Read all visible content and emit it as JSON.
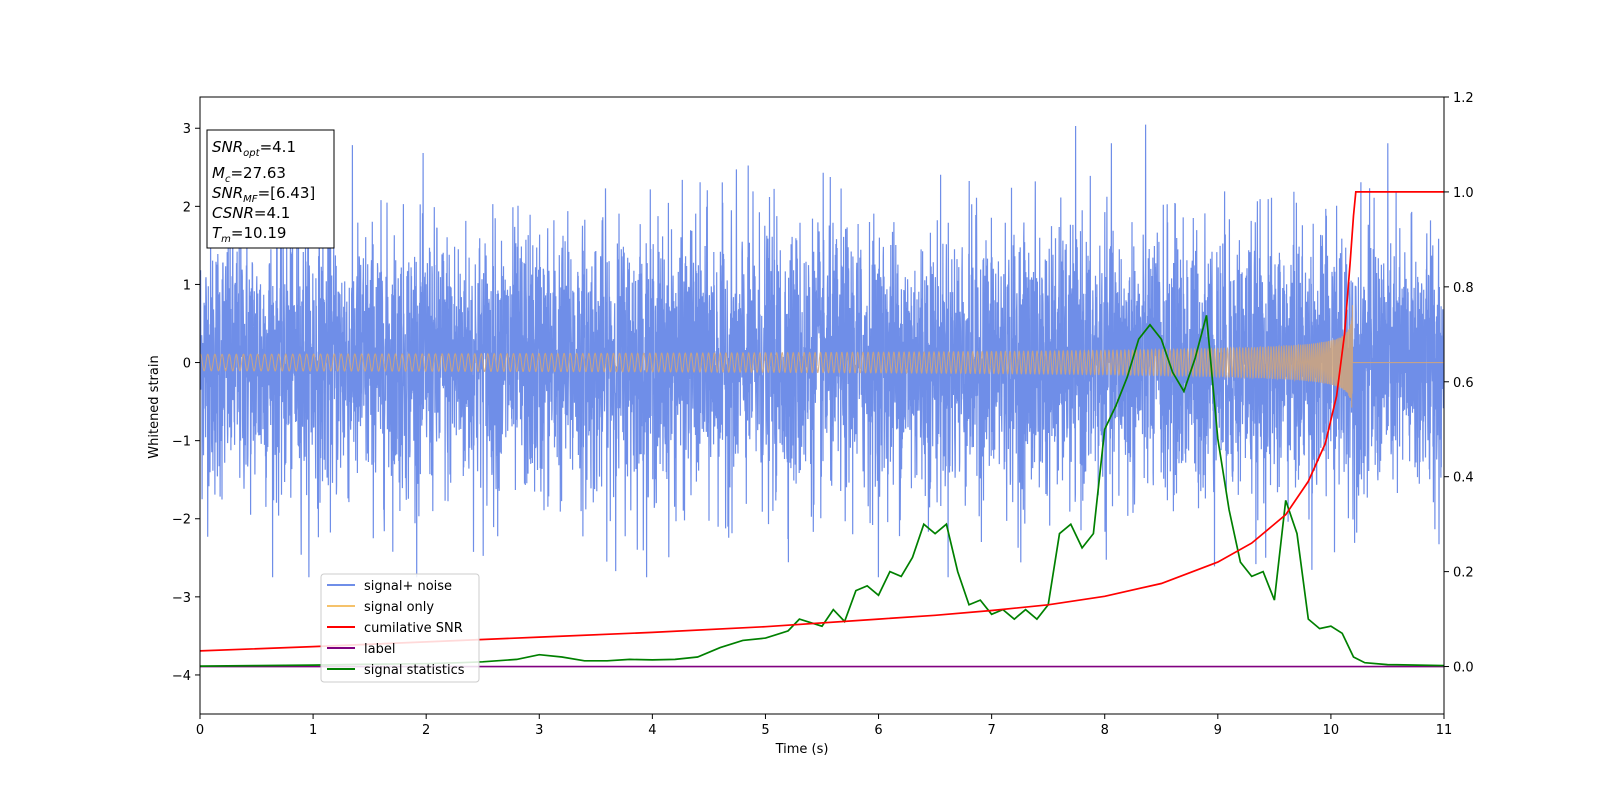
{
  "chart_data": {
    "type": "line",
    "title": "",
    "xlabel": "Time (s)",
    "ylabel": "Whitened strain",
    "y2label": "",
    "xlim": [
      0,
      11
    ],
    "ylim": [
      -4.5,
      3.4
    ],
    "y2lim": [
      -0.1,
      1.2
    ],
    "x_ticks": [
      "0",
      "1",
      "2",
      "3",
      "4",
      "5",
      "6",
      "7",
      "8",
      "9",
      "10",
      "11"
    ],
    "y_ticks": [
      "3",
      "2",
      "1",
      "0",
      "−1",
      "−2",
      "−3",
      "−4"
    ],
    "y_tick_values": [
      3,
      2,
      1,
      0,
      -1,
      -2,
      -3,
      -4
    ],
    "y2_ticks": [
      "1.2",
      "1.0",
      "0.8",
      "0.6",
      "0.4",
      "0.2",
      "0.0"
    ],
    "y2_tick_values": [
      1.2,
      1.0,
      0.8,
      0.6,
      0.4,
      0.2,
      0.0
    ],
    "grid": false,
    "legend_position": "lower-left",
    "colors": {
      "signal_noise": "#6f8ee8",
      "signal_only": "#f5c26b",
      "signal_only_dark": "#d2a679",
      "cumulative_snr": "#ff0000",
      "label": "#800080",
      "signal_statistics": "#008000"
    },
    "series": [
      {
        "name": "signal+ noise",
        "axis": "left",
        "kind": "noise",
        "description_values": {
          "mean": 0.0,
          "typical_amplitude": 1.6,
          "max_peak": 3.07,
          "min_peak": -2.75
        }
      },
      {
        "name": "signal only",
        "axis": "left",
        "kind": "chirp",
        "merger_time": 10.19,
        "peak_amplitude": 0.75
      },
      {
        "name": "cumilative SNR",
        "axis": "right",
        "x": [
          0,
          1,
          2,
          3,
          4,
          5,
          6,
          6.5,
          7,
          7.5,
          8,
          8.5,
          9,
          9.3,
          9.6,
          9.8,
          9.95,
          10.05,
          10.12,
          10.17,
          10.2,
          10.22,
          10.5,
          11
        ],
        "y": [
          0.033,
          0.042,
          0.052,
          0.062,
          0.072,
          0.084,
          0.1,
          0.108,
          0.118,
          0.13,
          0.148,
          0.175,
          0.22,
          0.26,
          0.32,
          0.39,
          0.47,
          0.57,
          0.7,
          0.85,
          0.95,
          1.0,
          1.0,
          1.0
        ]
      },
      {
        "name": "label",
        "axis": "right",
        "x": [
          0,
          11
        ],
        "y": [
          0.0,
          0.0
        ]
      },
      {
        "name": "signal statistics",
        "axis": "right",
        "x": [
          0,
          0.5,
          1,
          1.5,
          2,
          2.3,
          2.5,
          2.8,
          3.0,
          3.2,
          3.4,
          3.6,
          3.8,
          4.0,
          4.2,
          4.4,
          4.6,
          4.8,
          5.0,
          5.2,
          5.3,
          5.5,
          5.6,
          5.7,
          5.8,
          5.9,
          6.0,
          6.1,
          6.2,
          6.3,
          6.4,
          6.5,
          6.6,
          6.7,
          6.8,
          6.9,
          7.0,
          7.1,
          7.2,
          7.3,
          7.4,
          7.5,
          7.6,
          7.7,
          7.8,
          7.9,
          8.0,
          8.1,
          8.2,
          8.3,
          8.4,
          8.5,
          8.6,
          8.7,
          8.8,
          8.9,
          9.0,
          9.1,
          9.2,
          9.3,
          9.4,
          9.5,
          9.6,
          9.7,
          9.8,
          9.9,
          10.0,
          10.1,
          10.2,
          10.3,
          10.5,
          11
        ],
        "y": [
          0.001,
          0.002,
          0.003,
          0.005,
          0.006,
          0.008,
          0.01,
          0.015,
          0.025,
          0.02,
          0.012,
          0.012,
          0.015,
          0.014,
          0.015,
          0.02,
          0.04,
          0.055,
          0.06,
          0.075,
          0.1,
          0.085,
          0.12,
          0.095,
          0.16,
          0.17,
          0.15,
          0.2,
          0.19,
          0.23,
          0.3,
          0.28,
          0.3,
          0.2,
          0.13,
          0.14,
          0.11,
          0.12,
          0.1,
          0.12,
          0.1,
          0.13,
          0.28,
          0.3,
          0.25,
          0.28,
          0.5,
          0.55,
          0.61,
          0.69,
          0.72,
          0.69,
          0.62,
          0.58,
          0.65,
          0.74,
          0.48,
          0.33,
          0.22,
          0.19,
          0.2,
          0.14,
          0.35,
          0.28,
          0.1,
          0.08,
          0.085,
          0.07,
          0.02,
          0.008,
          0.004,
          0.002
        ]
      }
    ],
    "annotation": [
      {
        "base": "SNR",
        "sub": "opt",
        "rest": "=4.1"
      },
      {
        "base": "M",
        "sub": "c",
        "rest": "=27.63"
      },
      {
        "base": "SNR",
        "sub": "MF",
        "rest": "=[6.43]"
      },
      {
        "base": "CSNR",
        "sub": "",
        "rest": "=4.1"
      },
      {
        "base": "T",
        "sub": "m",
        "rest": "=10.19"
      }
    ]
  }
}
